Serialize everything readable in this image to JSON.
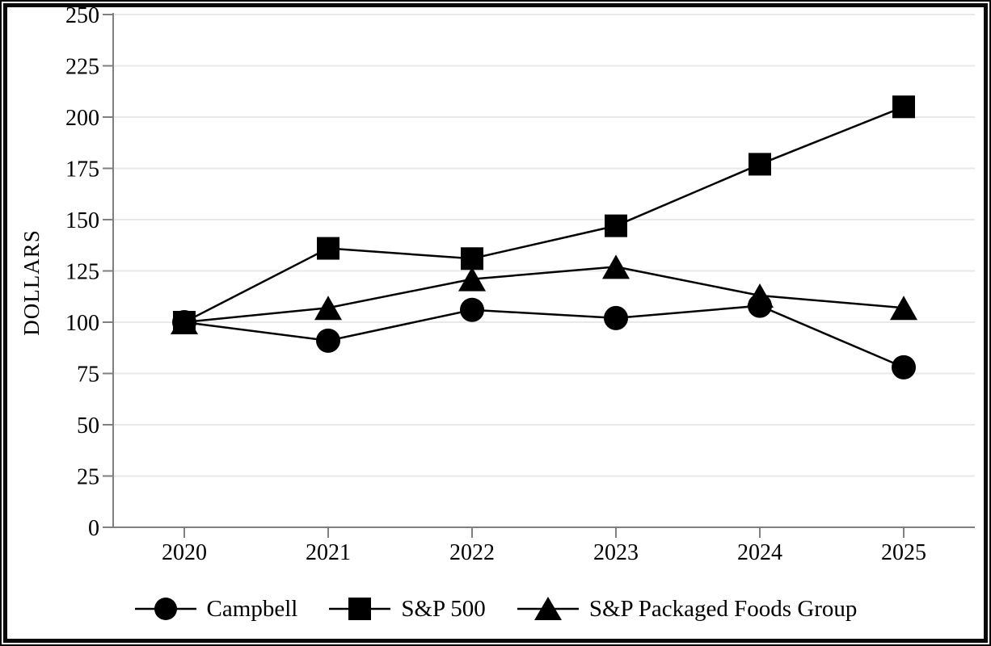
{
  "frame": {
    "background": "#ffffff",
    "border_color": "#000000"
  },
  "chart_data": {
    "type": "line",
    "title": "",
    "xlabel": "",
    "ylabel": "DOLLARS",
    "categories": [
      "2020",
      "2021",
      "2022",
      "2023",
      "2024",
      "2025"
    ],
    "series": [
      {
        "name": "Campbell",
        "marker": "circle",
        "color": "#000000",
        "values": [
          100,
          91,
          106,
          102,
          108,
          78
        ]
      },
      {
        "name": "S&P 500",
        "marker": "square",
        "color": "#000000",
        "values": [
          100,
          136,
          131,
          147,
          177,
          205
        ]
      },
      {
        "name": "S&P Packaged Foods Group",
        "marker": "triangle",
        "color": "#000000",
        "values": [
          100,
          107,
          121,
          127,
          113,
          107
        ]
      }
    ],
    "ylim": [
      0,
      250
    ],
    "yticks": [
      0,
      25,
      50,
      75,
      100,
      125,
      150,
      175,
      200,
      225,
      250
    ],
    "grid": "horizontal",
    "grid_color": "#e9e9e9",
    "axis_color": "#7f7f7f",
    "legend_position": "bottom"
  }
}
